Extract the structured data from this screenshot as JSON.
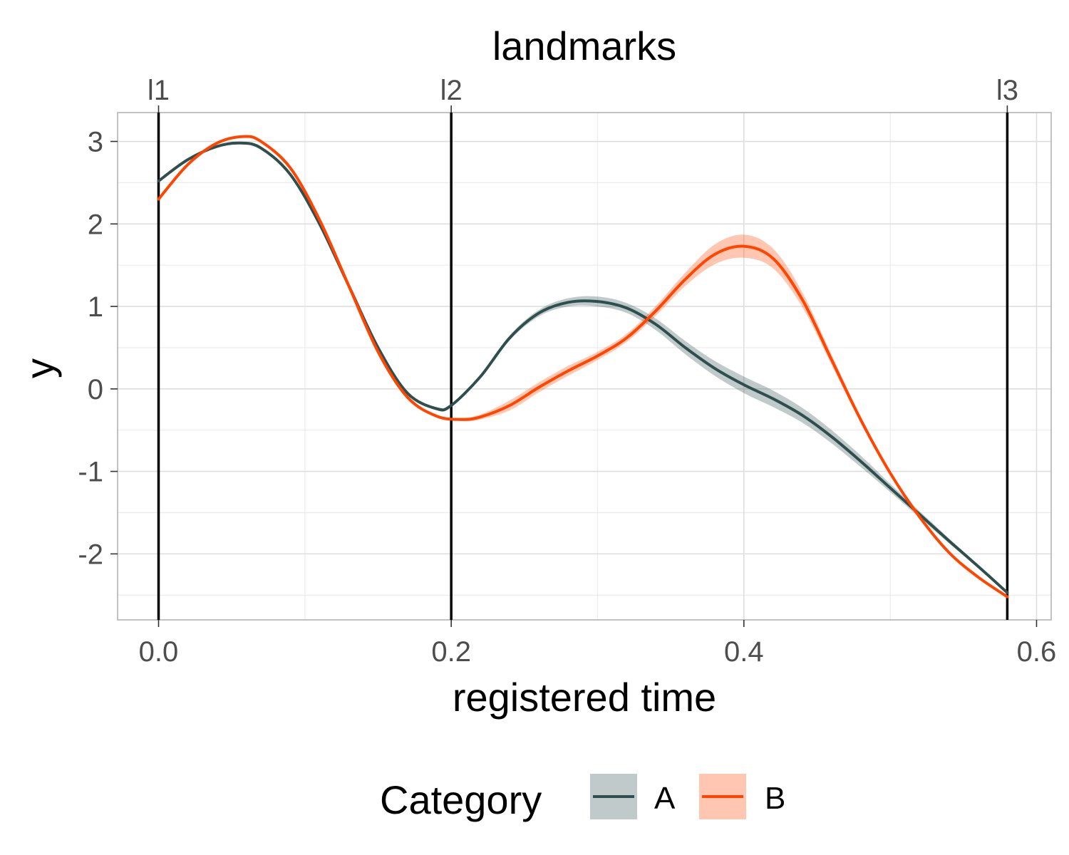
{
  "chart_data": {
    "type": "line",
    "title": "",
    "xlabel": "registered time",
    "ylabel": "y",
    "secondary_xlabel": "landmarks",
    "xlim": [
      -0.028,
      0.61
    ],
    "ylim": [
      -2.8,
      3.35
    ],
    "x_ticks": [
      0.0,
      0.2,
      0.4,
      0.6
    ],
    "x_tick_labels": [
      "0.0",
      "0.2",
      "0.4",
      "0.6"
    ],
    "y_ticks": [
      -2,
      -1,
      0,
      1,
      2,
      3
    ],
    "y_tick_labels": [
      "-2",
      "-1",
      "0",
      "1",
      "2",
      "3"
    ],
    "grid": true,
    "landmarks": [
      {
        "label": "l1",
        "x": 0.0
      },
      {
        "label": "l2",
        "x": 0.2
      },
      {
        "label": "l3",
        "x": 0.58
      }
    ],
    "legend": {
      "title": "Category",
      "position": "bottom"
    },
    "series": [
      {
        "name": "A",
        "color": "#2f4f4f",
        "ribbon_color": "#2f4f4f",
        "x": [
          0.0,
          0.02,
          0.04,
          0.056,
          0.07,
          0.09,
          0.11,
          0.13,
          0.15,
          0.17,
          0.19,
          0.2,
          0.22,
          0.24,
          0.26,
          0.28,
          0.3,
          0.32,
          0.34,
          0.36,
          0.38,
          0.4,
          0.42,
          0.44,
          0.46,
          0.48,
          0.5,
          0.52,
          0.54,
          0.56,
          0.58
        ],
        "y": [
          2.52,
          2.78,
          2.94,
          2.98,
          2.92,
          2.6,
          2.0,
          1.25,
          0.5,
          -0.05,
          -0.24,
          -0.2,
          0.15,
          0.62,
          0.92,
          1.05,
          1.06,
          0.98,
          0.78,
          0.5,
          0.25,
          0.05,
          -0.12,
          -0.32,
          -0.58,
          -0.88,
          -1.2,
          -1.52,
          -1.84,
          -2.15,
          -2.47
        ],
        "band": [
          0.0,
          0.0,
          0.0,
          0.0,
          0.0,
          0.0,
          0.0,
          0.0,
          0.0,
          0.0,
          0.02,
          0.02,
          0.02,
          0.03,
          0.04,
          0.05,
          0.06,
          0.06,
          0.07,
          0.08,
          0.09,
          0.1,
          0.1,
          0.09,
          0.08,
          0.07,
          0.05,
          0.04,
          0.03,
          0.02,
          0.01
        ]
      },
      {
        "name": "B",
        "color": "#ff4500",
        "ribbon_color": "#ff4500",
        "x": [
          0.0,
          0.02,
          0.04,
          0.058,
          0.07,
          0.09,
          0.11,
          0.13,
          0.15,
          0.17,
          0.19,
          0.207,
          0.22,
          0.24,
          0.26,
          0.28,
          0.3,
          0.32,
          0.34,
          0.36,
          0.38,
          0.4,
          0.42,
          0.44,
          0.46,
          0.48,
          0.5,
          0.52,
          0.54,
          0.56,
          0.58
        ],
        "y": [
          2.3,
          2.72,
          2.98,
          3.06,
          3.0,
          2.68,
          2.05,
          1.25,
          0.45,
          -0.1,
          -0.33,
          -0.37,
          -0.34,
          -0.2,
          0.02,
          0.22,
          0.4,
          0.62,
          0.95,
          1.33,
          1.63,
          1.73,
          1.58,
          1.08,
          0.35,
          -0.38,
          -1.02,
          -1.55,
          -1.98,
          -2.28,
          -2.52
        ],
        "band": [
          0.0,
          0.0,
          0.0,
          0.0,
          0.0,
          0.0,
          0.0,
          0.0,
          0.0,
          0.0,
          0.01,
          0.02,
          0.03,
          0.06,
          0.06,
          0.06,
          0.05,
          0.05,
          0.06,
          0.08,
          0.12,
          0.14,
          0.12,
          0.09,
          0.06,
          0.04,
          0.03,
          0.02,
          0.01,
          0.01,
          0.0
        ]
      }
    ]
  }
}
